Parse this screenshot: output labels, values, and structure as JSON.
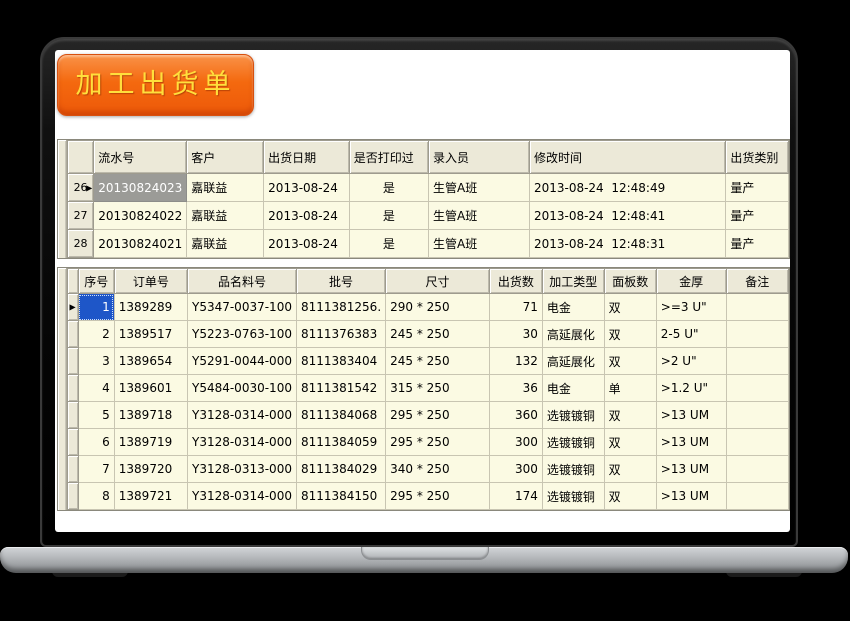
{
  "app": {
    "title_button_label": "加工出货单"
  },
  "colors": {
    "button_orange": "#f4690f",
    "button_text_yellow": "#ffdf3c",
    "grid_header_bg": "#ece9d8",
    "grid_cell_bg": "#fbfae3",
    "selected_cell_gray": "#9b9b97",
    "selected_cell_blue": "#1e56c8"
  },
  "orders_table": {
    "columns": [
      "流水号",
      "客户",
      "出货日期",
      "是否打印过",
      "录入员",
      "修改时间",
      "出货类别"
    ],
    "selected_column": 0,
    "rows": [
      {
        "row_no": "26",
        "selected": true,
        "cells": [
          "20130824023",
          "嘉联益",
          "2013-08-24",
          "是",
          "生管A班",
          "2013-08-24  12:48:49",
          "量产"
        ]
      },
      {
        "row_no": "27",
        "selected": false,
        "cells": [
          "20130824022",
          "嘉联益",
          "2013-08-24",
          "是",
          "生管A班",
          "2013-08-24  12:48:41",
          "量产"
        ]
      },
      {
        "row_no": "28",
        "selected": false,
        "cells": [
          "20130824021",
          "嘉联益",
          "2013-08-24",
          "是",
          "生管A班",
          "2013-08-24  12:48:31",
          "量产"
        ]
      }
    ]
  },
  "detail_table": {
    "columns": [
      "序号",
      "订单号",
      "品名料号",
      "批号",
      "尺寸",
      "出货数",
      "加工类型",
      "面板数",
      "金厚",
      "备注"
    ],
    "selected_column": 0,
    "rows": [
      {
        "selected": true,
        "cells": [
          "1",
          "1389289",
          "Y5347-0037-100",
          "8111381256.",
          "290 * 250",
          "71",
          "电金",
          "双",
          ">=3 U\"",
          ""
        ]
      },
      {
        "selected": false,
        "cells": [
          "2",
          "1389517",
          "Y5223-0763-100",
          "8111376383",
          "245 * 250",
          "30",
          "高延展化",
          "双",
          "2-5 U\"",
          ""
        ]
      },
      {
        "selected": false,
        "cells": [
          "3",
          "1389654",
          "Y5291-0044-000",
          "8111383404",
          "245 * 250",
          "132",
          "高延展化",
          "双",
          ">2 U\"",
          ""
        ]
      },
      {
        "selected": false,
        "cells": [
          "4",
          "1389601",
          "Y5484-0030-100",
          "8111381542",
          "315 * 250",
          "36",
          "电金",
          "单",
          ">1.2 U\"",
          ""
        ]
      },
      {
        "selected": false,
        "cells": [
          "5",
          "1389718",
          "Y3128-0314-000",
          "8111384068",
          "295 * 250",
          "360",
          "选镀镀铜",
          "双",
          ">13 UM",
          ""
        ]
      },
      {
        "selected": false,
        "cells": [
          "6",
          "1389719",
          "Y3128-0314-000",
          "8111384059",
          "295 * 250",
          "300",
          "选镀镀铜",
          "双",
          ">13 UM",
          ""
        ]
      },
      {
        "selected": false,
        "cells": [
          "7",
          "1389720",
          "Y3128-0313-000",
          "8111384029",
          "340 * 250",
          "300",
          "选镀镀铜",
          "双",
          ">13 UM",
          ""
        ]
      },
      {
        "selected": false,
        "cells": [
          "8",
          "1389721",
          "Y3128-0314-000",
          "8111384150",
          "295 * 250",
          "174",
          "选镀镀铜",
          "双",
          ">13 UM",
          ""
        ]
      }
    ]
  }
}
